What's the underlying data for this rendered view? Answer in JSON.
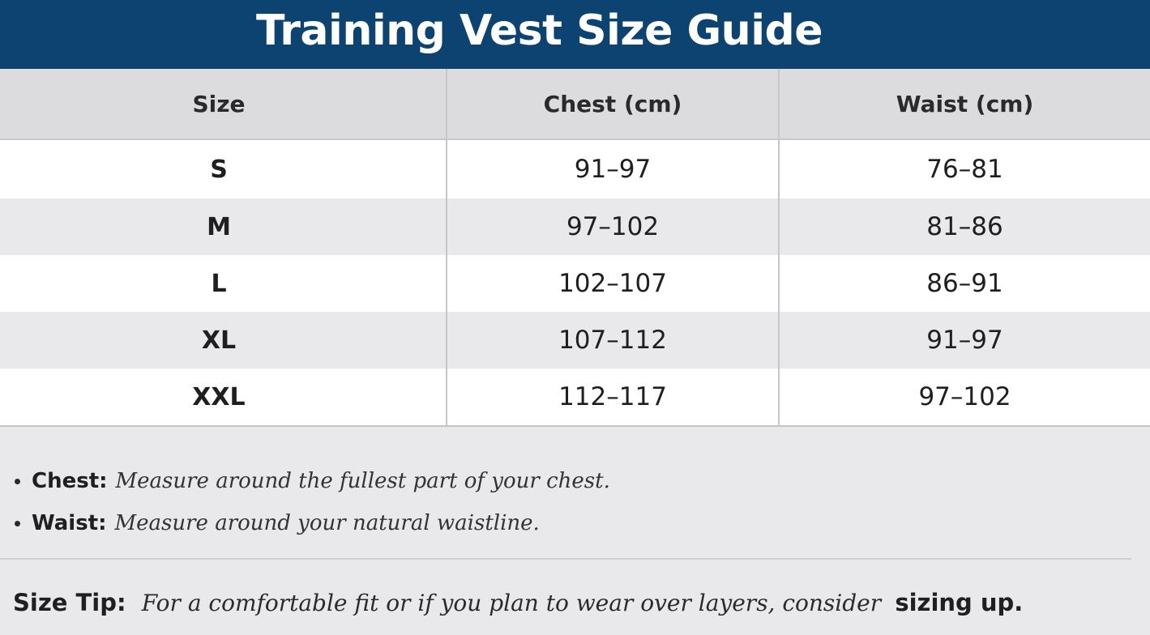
{
  "title": "Training Vest Size Guide",
  "colors": {
    "header_bg": "#0c4370",
    "title_text": "#ffffff",
    "table_head_bg": "#dcdcde",
    "row_alt_bg": "#e9e9eb"
  },
  "table": {
    "headers": [
      "Size",
      "Chest (cm)",
      "Waist (cm)"
    ],
    "rows": [
      {
        "size": "S",
        "chest": "91–97",
        "waist": "76–81"
      },
      {
        "size": "M",
        "chest": "97–102",
        "waist": "81–86"
      },
      {
        "size": "L",
        "chest": "102–107",
        "waist": "86–91"
      },
      {
        "size": "XL",
        "chest": "107–112",
        "waist": "91–97"
      },
      {
        "size": "XXL",
        "chest": "112–117",
        "waist": "97–102"
      }
    ]
  },
  "notes": [
    {
      "term": "Chest:",
      "text": "Measure around the fullest part of your chest."
    },
    {
      "term": "Waist:",
      "text": "Measure around your natural waistline."
    }
  ],
  "tip": {
    "label": "Size Tip:",
    "text": "For a comfortable fit or if you plan to wear over layers, consider",
    "emphasis": "sizing up."
  }
}
